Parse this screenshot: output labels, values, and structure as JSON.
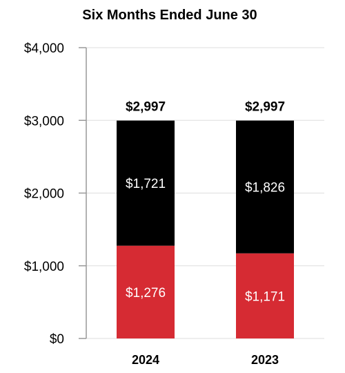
{
  "chart_data": {
    "type": "bar",
    "stacked": true,
    "title": "Six Months Ended June 30",
    "categories": [
      "2024",
      "2023"
    ],
    "series": [
      {
        "values": [
          1276,
          1171
        ],
        "color": "#d62b33",
        "labels": [
          "$1,276",
          "$1,171"
        ]
      },
      {
        "values": [
          1721,
          1826
        ],
        "color": "#000000",
        "labels": [
          "$1,721",
          "$1,826"
        ]
      }
    ],
    "totals": [
      "$2,997",
      "$2,997"
    ],
    "ylim": [
      0,
      4000
    ],
    "yticks": [
      0,
      1000,
      2000,
      3000,
      4000
    ],
    "ytick_labels": [
      "$0",
      "$1,000",
      "$2,000",
      "$3,000",
      "$4,000"
    ],
    "grid": true
  }
}
